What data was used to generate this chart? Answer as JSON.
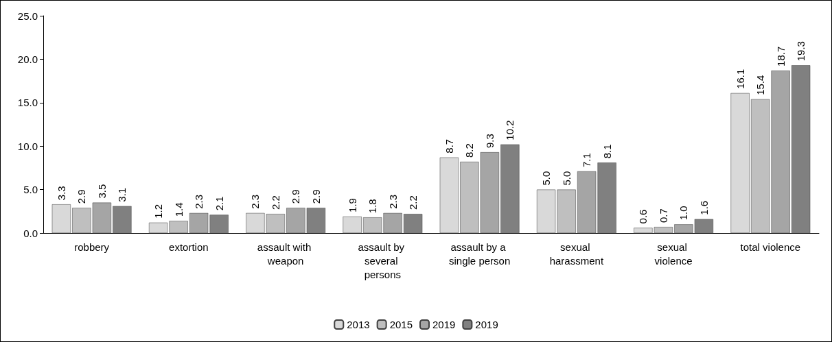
{
  "chart_data": {
    "type": "bar",
    "categories": [
      "robbery",
      "extortion",
      "assault with weapon",
      "assault by several persons",
      "assault by a single person",
      "sexual harassment",
      "sexual violence",
      "total violence"
    ],
    "series": [
      {
        "name": "2013",
        "color": "#d9d9d9",
        "values": [
          3.3,
          1.2,
          2.3,
          1.9,
          8.7,
          5.0,
          0.6,
          16.1
        ],
        "value_labels": [
          "3.3",
          "1.2",
          "2.3",
          "1.9",
          "8.7",
          "5.0",
          "0.6",
          "16.1"
        ]
      },
      {
        "name": "2015",
        "color": "#bfbfbf",
        "values": [
          2.9,
          1.4,
          2.2,
          1.8,
          8.2,
          5.0,
          0.7,
          15.4
        ],
        "value_labels": [
          "2.9",
          "1.4",
          "2.2",
          "1.8",
          "8.2",
          "5.0",
          "0.7",
          "15.4"
        ]
      },
      {
        "name": "2019",
        "color": "#a5a5a5",
        "values": [
          3.5,
          2.3,
          2.9,
          2.3,
          9.3,
          7.1,
          1.0,
          18.7
        ],
        "value_labels": [
          "3.5",
          "2.3",
          "2.9",
          "2.3",
          "9.3",
          "7.1",
          "1.0",
          "18.7"
        ]
      },
      {
        "name": "2019",
        "color": "#808080",
        "values": [
          3.1,
          2.1,
          2.9,
          2.2,
          10.2,
          8.1,
          1.6,
          19.3
        ],
        "value_labels": [
          "3.1",
          "2.1",
          "2.9",
          "2.2",
          "10.2",
          "8.1",
          "1.6",
          "19.3"
        ]
      }
    ],
    "ylim": [
      0,
      25
    ],
    "yticks": [
      {
        "value": 0,
        "label": "0.0"
      },
      {
        "value": 5,
        "label": "5.0"
      },
      {
        "value": 10,
        "label": "10.0"
      },
      {
        "value": 15,
        "label": "15.0"
      },
      {
        "value": 20,
        "label": "20.0"
      },
      {
        "value": 25,
        "label": "25.0"
      }
    ],
    "grid": false,
    "legend": "bottom"
  }
}
